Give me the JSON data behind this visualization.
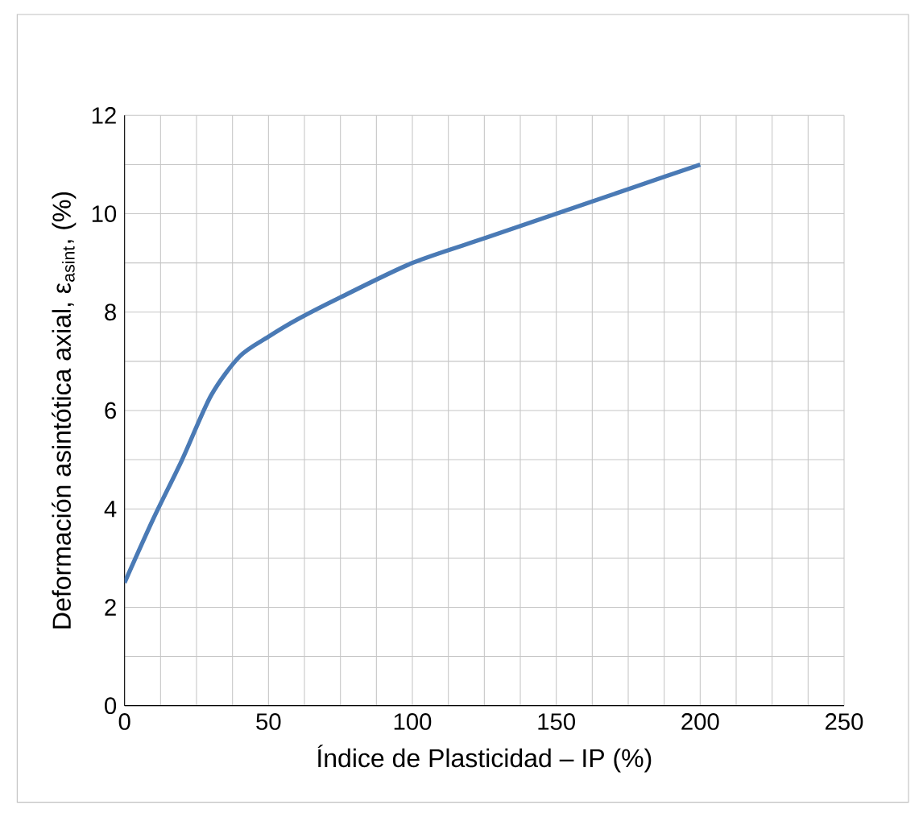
{
  "chart_data": {
    "type": "line",
    "xlabel": "Índice de Plasticidad – IP  (%)",
    "ylabel": "Deformación asintótica axial, ε$_{asint}$, (%)",
    "x": [
      0,
      10,
      20,
      30,
      40,
      50,
      60,
      75,
      100,
      125,
      150,
      175,
      200
    ],
    "series": [
      {
        "color": "#4a7ab5",
        "values": [
          2.5,
          3.8,
          5.0,
          6.3,
          7.1,
          7.5,
          7.85,
          8.3,
          9.0,
          9.5,
          10.0,
          10.5,
          11.0
        ]
      }
    ],
    "xlim": [
      0,
      250
    ],
    "xticks": [
      0,
      50,
      100,
      150,
      200,
      250
    ],
    "ylim": [
      0,
      12
    ],
    "yticks": [
      0,
      2,
      4,
      6,
      8,
      10,
      12
    ],
    "grid": true,
    "marker": "none",
    "line_style": "solid"
  }
}
